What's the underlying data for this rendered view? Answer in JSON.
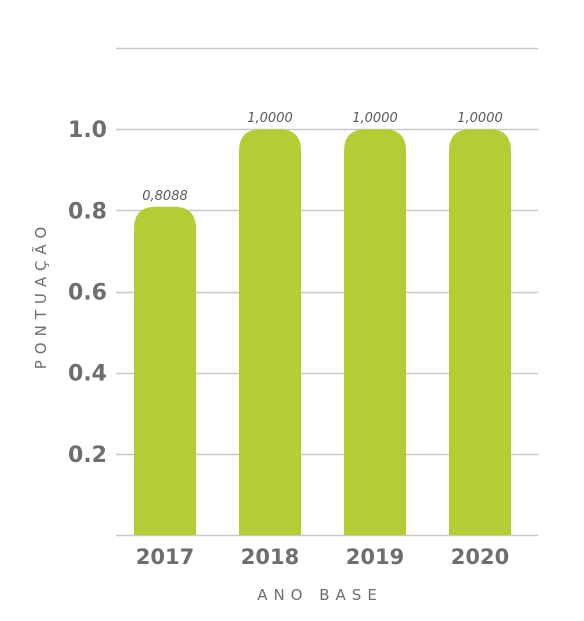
{
  "chart_data": {
    "type": "bar",
    "categories": [
      "2017",
      "2018",
      "2019",
      "2020"
    ],
    "values": [
      0.8088,
      1.0,
      1.0,
      1.0
    ],
    "data_labels": [
      "0,8088",
      "1,0000",
      "1,0000",
      "1,0000"
    ],
    "xlabel": "ANO BASE",
    "ylabel": "PONTUAÇÃO",
    "ylim": [
      0,
      1.2
    ],
    "yticks": [
      0.2,
      0.4,
      0.6,
      0.8,
      1.0
    ],
    "ytick_labels": [
      "0.2",
      "0.4",
      "0.6",
      "0.8",
      "1.0"
    ],
    "grid": true,
    "legend": "none",
    "colors": {
      "bar": "#b5cc34",
      "grid": "#c8c8c8",
      "text": "#6d6e70"
    }
  }
}
